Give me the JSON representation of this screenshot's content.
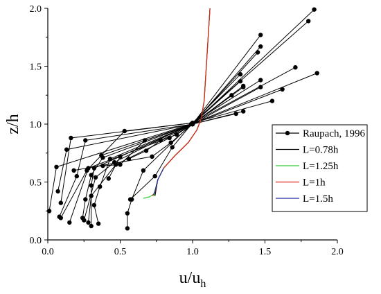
{
  "chart_data": {
    "type": "line",
    "xlabel": {
      "base": "u/u",
      "sub": "h"
    },
    "ylabel": "z/h",
    "xlim": [
      0,
      2.0
    ],
    "ylim": [
      0,
      2.0
    ],
    "xticks": [
      "0.0",
      "0.5",
      "1.0",
      "1.5",
      "2.0"
    ],
    "yticks": [
      "0.0",
      "0.5",
      "1.0",
      "1.5",
      "2.0"
    ],
    "grid": false,
    "legend_position": "right",
    "legend": [
      "Raupach, 1996",
      "L=0.78h",
      "L=1.25h",
      "L=1h",
      "L=1.5h"
    ],
    "series": [
      {
        "name": "Raupach, 1996",
        "color": "#000000",
        "marker": "circle",
        "profiles": [
          [
            [
              0.01,
              0.25
            ],
            [
              0.06,
              0.63
            ],
            [
              0.99,
              1.0
            ],
            [
              1.86,
              1.44
            ]
          ],
          [
            [
              0.07,
              0.42
            ],
            [
              0.13,
              0.78
            ],
            [
              1.0,
              1.0
            ],
            [
              1.84,
              1.99
            ]
          ],
          [
            [
              0.09,
              0.32
            ],
            [
              0.16,
              0.88
            ],
            [
              1.0,
              1.01
            ],
            [
              1.55,
              1.2
            ]
          ],
          [
            [
              0.08,
              0.2
            ],
            [
              0.2,
              0.55
            ],
            [
              0.26,
              0.86
            ],
            [
              1.0,
              1.0
            ],
            [
              1.62,
              1.3
            ]
          ],
          [
            [
              0.09,
              0.19
            ],
            [
              0.27,
              0.6
            ],
            [
              0.53,
              0.94
            ],
            [
              1.0,
              1.01
            ],
            [
              1.71,
              1.49
            ]
          ],
          [
            [
              0.15,
              0.15
            ],
            [
              0.28,
              0.62
            ],
            [
              0.89,
              0.91
            ],
            [
              1.0,
              1.0
            ],
            [
              1.33,
              1.37
            ]
          ],
          [
            [
              0.25,
              0.17
            ],
            [
              0.33,
              0.54
            ],
            [
              0.46,
              0.67
            ],
            [
              1.0,
              1.01
            ],
            [
              1.8,
              1.89
            ]
          ],
          [
            [
              0.3,
              0.12
            ],
            [
              0.3,
              0.47
            ],
            [
              0.32,
              0.62
            ],
            [
              1.0,
              1.0
            ],
            [
              1.47,
              1.77
            ]
          ],
          [
            [
              0.35,
              0.14
            ],
            [
              0.32,
              0.3
            ],
            [
              0.36,
              0.46
            ],
            [
              0.43,
              0.7
            ],
            [
              1.0,
              1.0
            ],
            [
              1.47,
              1.67
            ]
          ],
          [
            [
              0.24,
              0.19
            ],
            [
              0.26,
              0.35
            ],
            [
              0.3,
              0.56
            ],
            [
              0.38,
              0.71
            ],
            [
              1.0,
              1.0
            ],
            [
              1.45,
              1.62
            ]
          ],
          [
            [
              0.28,
              0.15
            ],
            [
              0.3,
              0.38
            ],
            [
              0.47,
              0.65
            ],
            [
              0.84,
              0.88
            ],
            [
              1.0,
              1.0
            ],
            [
              1.27,
              1.25
            ]
          ],
          [
            [
              0.55,
              0.1
            ],
            [
              0.55,
              0.23
            ],
            [
              0.58,
              0.35
            ],
            [
              0.66,
              0.6
            ],
            [
              1.0,
              1.01
            ],
            [
              1.33,
              1.43
            ]
          ],
          [
            [
              0.57,
              0.35
            ],
            [
              0.74,
              0.55
            ],
            [
              0.86,
              0.8
            ],
            [
              1.0,
              1.01
            ],
            [
              1.47,
              1.38
            ]
          ],
          [
            [
              0.42,
              0.53
            ],
            [
              0.5,
              0.72
            ],
            [
              1.0,
              1.0
            ],
            [
              1.35,
              1.33
            ]
          ],
          [
            [
              0.38,
              0.64
            ],
            [
              0.5,
              0.65
            ],
            [
              0.67,
              0.86
            ],
            [
              1.0,
              1.0
            ],
            [
              1.35,
              1.32
            ]
          ],
          [
            [
              0.56,
              0.7
            ],
            [
              0.68,
              0.77
            ],
            [
              0.78,
              0.86
            ],
            [
              1.0,
              1.0
            ],
            [
              1.35,
              1.11
            ]
          ],
          [
            [
              0.37,
              0.73
            ],
            [
              1.0,
              1.0
            ],
            [
              1.3,
              1.09
            ]
          ],
          [
            [
              0.18,
              0.6
            ],
            [
              0.72,
              0.72
            ],
            [
              0.85,
              0.84
            ],
            [
              1.0,
              1.0
            ],
            [
              1.47,
              1.32
            ]
          ]
        ]
      },
      {
        "name": "L=0.78h",
        "color": "#000000",
        "points": [
          [
            0.74,
            0.38
          ],
          [
            0.76,
            0.52
          ],
          [
            0.8,
            0.62
          ],
          [
            0.88,
            0.73
          ],
          [
            0.97,
            0.84
          ],
          [
            1.03,
            0.95
          ],
          [
            1.06,
            1.05
          ],
          [
            1.08,
            1.2
          ],
          [
            1.09,
            1.4
          ],
          [
            1.1,
            1.6
          ],
          [
            1.11,
            1.8
          ],
          [
            1.12,
            2.0
          ]
        ]
      },
      {
        "name": "L=1.25h",
        "color": "#32cd32",
        "points": [
          [
            0.66,
            0.36
          ],
          [
            0.7,
            0.37
          ],
          [
            0.74,
            0.4
          ],
          [
            0.73,
            0.38
          ],
          [
            0.76,
            0.52
          ],
          [
            0.8,
            0.62
          ],
          [
            0.88,
            0.73
          ],
          [
            0.97,
            0.84
          ],
          [
            1.03,
            0.95
          ],
          [
            1.06,
            1.05
          ],
          [
            1.08,
            1.2
          ],
          [
            1.09,
            1.4
          ],
          [
            1.1,
            1.6
          ],
          [
            1.11,
            1.8
          ],
          [
            1.12,
            2.0
          ]
        ]
      },
      {
        "name": "L=1h",
        "color": "#e0201a",
        "points": [
          [
            0.72,
            0.38
          ],
          [
            0.74,
            0.41
          ],
          [
            0.76,
            0.52
          ],
          [
            0.8,
            0.62
          ],
          [
            0.88,
            0.73
          ],
          [
            0.97,
            0.84
          ],
          [
            1.03,
            0.95
          ],
          [
            1.06,
            1.05
          ],
          [
            1.08,
            1.2
          ],
          [
            1.09,
            1.4
          ],
          [
            1.1,
            1.6
          ],
          [
            1.11,
            1.8
          ],
          [
            1.12,
            2.0
          ]
        ]
      },
      {
        "name": "L=1.5h",
        "color": "#1c2fa0",
        "points": [
          [
            0.73,
            0.39
          ],
          [
            0.74,
            0.42
          ],
          [
            0.76,
            0.52
          ],
          [
            0.8,
            0.62
          ]
        ]
      }
    ]
  }
}
